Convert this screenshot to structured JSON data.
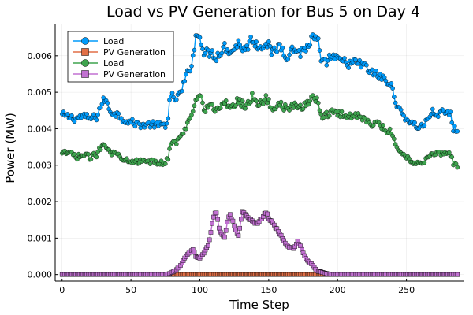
{
  "chart_data": {
    "type": "line",
    "title": "Load vs PV Generation for Bus 5 on Day 4",
    "xlabel": "Time Step",
    "ylabel": "Power (MW)",
    "xlim": [
      -5,
      292
    ],
    "ylim": [
      -0.00018,
      0.00686
    ],
    "x_ticks": [
      0,
      50,
      100,
      150,
      200,
      250
    ],
    "y_ticks": [
      0.0,
      0.001,
      0.002,
      0.003,
      0.004,
      0.005,
      0.006
    ],
    "y_tick_labels": [
      "0.000",
      "0.001",
      "0.002",
      "0.003",
      "0.004",
      "0.005",
      "0.006"
    ],
    "grid": true,
    "legend_position": "top-left",
    "num_steps": 288,
    "series": [
      {
        "name": "Load",
        "color": "#009AFA",
        "marker": "circle",
        "keypoints": [
          [
            0,
            0.00438
          ],
          [
            5,
            0.00432
          ],
          [
            10,
            0.00428
          ],
          [
            15,
            0.00435
          ],
          [
            20,
            0.00428
          ],
          [
            25,
            0.00432
          ],
          [
            28,
            0.00462
          ],
          [
            31,
            0.00482
          ],
          [
            35,
            0.00448
          ],
          [
            40,
            0.0044
          ],
          [
            45,
            0.00425
          ],
          [
            50,
            0.00418
          ],
          [
            55,
            0.00412
          ],
          [
            60,
            0.0041
          ],
          [
            65,
            0.00412
          ],
          [
            70,
            0.00408
          ],
          [
            75,
            0.00412
          ],
          [
            77,
            0.00428
          ],
          [
            78,
            0.00472
          ],
          [
            80,
            0.00488
          ],
          [
            83,
            0.00482
          ],
          [
            86,
            0.00498
          ],
          [
            90,
            0.0054
          ],
          [
            93,
            0.00568
          ],
          [
            95,
            0.006
          ],
          [
            97,
            0.00648
          ],
          [
            100,
            0.00662
          ],
          [
            103,
            0.00605
          ],
          [
            108,
            0.0061
          ],
          [
            112,
            0.00598
          ],
          [
            118,
            0.00625
          ],
          [
            123,
            0.00612
          ],
          [
            128,
            0.00635
          ],
          [
            133,
            0.00615
          ],
          [
            138,
            0.00648
          ],
          [
            143,
            0.00622
          ],
          [
            148,
            0.0064
          ],
          [
            153,
            0.00605
          ],
          [
            158,
            0.0063
          ],
          [
            163,
            0.006
          ],
          [
            168,
            0.0062
          ],
          [
            173,
            0.00608
          ],
          [
            178,
            0.00625
          ],
          [
            182,
            0.00648
          ],
          [
            186,
            0.0064
          ],
          [
            188,
            0.00575
          ],
          [
            191,
            0.0058
          ],
          [
            195,
            0.00598
          ],
          [
            200,
            0.00588
          ],
          [
            205,
            0.00582
          ],
          [
            210,
            0.00578
          ],
          [
            215,
            0.0058
          ],
          [
            220,
            0.0057
          ],
          [
            225,
            0.00552
          ],
          [
            230,
            0.00545
          ],
          [
            235,
            0.00532
          ],
          [
            240,
            0.0051
          ],
          [
            242,
            0.0048
          ],
          [
            245,
            0.00448
          ],
          [
            250,
            0.00428
          ],
          [
            255,
            0.00412
          ],
          [
            258,
            0.00405
          ],
          [
            263,
            0.0041
          ],
          [
            268,
            0.00445
          ],
          [
            273,
            0.0044
          ],
          [
            277,
            0.00445
          ],
          [
            282,
            0.0044
          ],
          [
            284,
            0.004
          ],
          [
            287,
            0.00398
          ]
        ]
      },
      {
        "name": "PV Generation",
        "color": "#E26F46",
        "marker": "square",
        "constant": 0.0
      },
      {
        "name": "Load",
        "color": "#3EA44E",
        "marker": "circle",
        "keypoints": [
          [
            0,
            0.0033
          ],
          [
            5,
            0.00335
          ],
          [
            10,
            0.00322
          ],
          [
            15,
            0.00328
          ],
          [
            20,
            0.00322
          ],
          [
            25,
            0.00328
          ],
          [
            28,
            0.0035
          ],
          [
            31,
            0.00362
          ],
          [
            35,
            0.00335
          ],
          [
            40,
            0.0033
          ],
          [
            45,
            0.00318
          ],
          [
            50,
            0.00314
          ],
          [
            55,
            0.0031
          ],
          [
            60,
            0.00308
          ],
          [
            65,
            0.0031
          ],
          [
            70,
            0.00305
          ],
          [
            75,
            0.00308
          ],
          [
            77,
            0.0032
          ],
          [
            78,
            0.00352
          ],
          [
            80,
            0.00365
          ],
          [
            83,
            0.00362
          ],
          [
            86,
            0.00375
          ],
          [
            90,
            0.00405
          ],
          [
            93,
            0.00428
          ],
          [
            95,
            0.00452
          ],
          [
            97,
            0.00488
          ],
          [
            100,
            0.005
          ],
          [
            103,
            0.00455
          ],
          [
            108,
            0.0046
          ],
          [
            112,
            0.00452
          ],
          [
            118,
            0.0047
          ],
          [
            123,
            0.0046
          ],
          [
            128,
            0.00478
          ],
          [
            133,
            0.00462
          ],
          [
            138,
            0.00488
          ],
          [
            143,
            0.00468
          ],
          [
            148,
            0.00482
          ],
          [
            153,
            0.00455
          ],
          [
            158,
            0.00472
          ],
          [
            163,
            0.00452
          ],
          [
            168,
            0.00465
          ],
          [
            173,
            0.00455
          ],
          [
            178,
            0.0047
          ],
          [
            182,
            0.00488
          ],
          [
            186,
            0.0048
          ],
          [
            188,
            0.00432
          ],
          [
            191,
            0.00435
          ],
          [
            195,
            0.00448
          ],
          [
            200,
            0.00442
          ],
          [
            205,
            0.00438
          ],
          [
            210,
            0.00435
          ],
          [
            215,
            0.00436
          ],
          [
            220,
            0.00428
          ],
          [
            225,
            0.00415
          ],
          [
            230,
            0.0041
          ],
          [
            235,
            0.004
          ],
          [
            240,
            0.00385
          ],
          [
            242,
            0.00362
          ],
          [
            245,
            0.00338
          ],
          [
            250,
            0.00322
          ],
          [
            255,
            0.0031
          ],
          [
            258,
            0.00305
          ],
          [
            263,
            0.0031
          ],
          [
            268,
            0.00335
          ],
          [
            273,
            0.00332
          ],
          [
            277,
            0.00335
          ],
          [
            282,
            0.0033
          ],
          [
            284,
            0.00302
          ],
          [
            287,
            0.003
          ]
        ]
      },
      {
        "name": "PV Generation",
        "color": "#C271D2",
        "marker": "square",
        "keypoints": [
          [
            0,
            0.0
          ],
          [
            75,
            0.0
          ],
          [
            78,
            3e-05
          ],
          [
            82,
            0.0001
          ],
          [
            86,
            0.00025
          ],
          [
            89,
            0.00045
          ],
          [
            92,
            0.0006
          ],
          [
            95,
            0.0007
          ],
          [
            97,
            0.0005
          ],
          [
            100,
            0.00045
          ],
          [
            103,
            0.0006
          ],
          [
            106,
            0.0008
          ],
          [
            108,
            0.00115
          ],
          [
            110,
            0.0016
          ],
          [
            112,
            0.00172
          ],
          [
            114,
            0.0013
          ],
          [
            116,
            0.00108
          ],
          [
            118,
            0.001
          ],
          [
            120,
            0.00145
          ],
          [
            122,
            0.00165
          ],
          [
            124,
            0.00145
          ],
          [
            126,
            0.0012
          ],
          [
            128,
            0.00105
          ],
          [
            131,
            0.0017
          ],
          [
            134,
            0.0016
          ],
          [
            137,
            0.0015
          ],
          [
            140,
            0.0014
          ],
          [
            143,
            0.00145
          ],
          [
            146,
            0.0016
          ],
          [
            148,
            0.0017
          ],
          [
            151,
            0.0015
          ],
          [
            154,
            0.00135
          ],
          [
            157,
            0.0012
          ],
          [
            160,
            0.001
          ],
          [
            162,
            0.00085
          ],
          [
            165,
            0.00075
          ],
          [
            168,
            0.00072
          ],
          [
            171,
            0.0009
          ],
          [
            173,
            0.0008
          ],
          [
            175,
            0.0006
          ],
          [
            177,
            0.00045
          ],
          [
            179,
            0.00035
          ],
          [
            181,
            0.0003
          ],
          [
            183,
            0.0002
          ],
          [
            185,
            0.0001
          ],
          [
            188,
            7e-05
          ],
          [
            192,
            3e-05
          ],
          [
            196,
            0.0
          ],
          [
            287,
            0.0
          ]
        ]
      }
    ]
  }
}
